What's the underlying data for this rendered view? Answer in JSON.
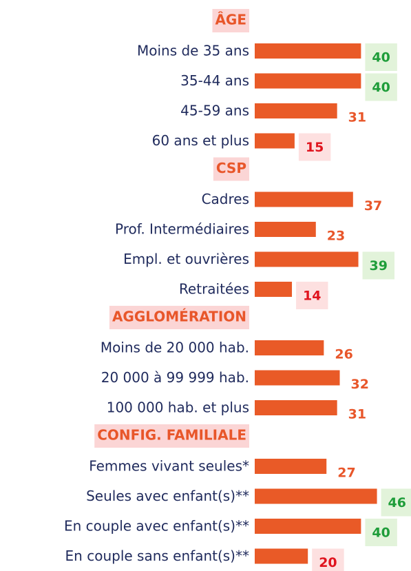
{
  "chart_data": {
    "type": "bar",
    "color": "#e95a27",
    "groups": [
      {
        "title": "ÂGE",
        "categories": [
          "Moins de 35 ans",
          "35-44 ans",
          "45-59 ans",
          "60 ans et plus"
        ],
        "values": [
          40,
          40,
          31,
          15
        ],
        "label_colors": [
          "#1f9d3a",
          "#1f9d3a",
          "#e8562a",
          "#e0141e"
        ],
        "label_backgrounds": [
          "#e2f3da",
          "#e2f3da",
          null,
          "#fde0e0"
        ]
      },
      {
        "title": "CSP",
        "categories": [
          "Cadres",
          "Prof. Intermédiaires",
          "Empl. et ouvrières",
          "Retraitées"
        ],
        "values": [
          37,
          23,
          39,
          14
        ],
        "label_colors": [
          "#e8562a",
          "#e8562a",
          "#1f9d3a",
          "#e0141e"
        ],
        "label_backgrounds": [
          null,
          null,
          "#e2f3da",
          "#fde0e0"
        ]
      },
      {
        "title": "AGGLOMÉRATION",
        "categories": [
          "Moins de 20 000 hab.",
          "20 000 à  99 999 hab.",
          "100 000 hab. et plus"
        ],
        "values": [
          26,
          32,
          31
        ],
        "label_colors": [
          "#e8562a",
          "#e8562a",
          "#e8562a"
        ],
        "label_backgrounds": [
          null,
          null,
          null
        ]
      },
      {
        "title": "CONFIG. FAMILIALE",
        "categories": [
          "Femmes vivant seules*",
          "Seules avec enfant(s)**",
          "En couple avec enfant(s)**",
          "En couple sans enfant(s)**"
        ],
        "values": [
          27,
          46,
          40,
          20
        ],
        "label_colors": [
          "#e8562a",
          "#1f9d3a",
          "#1f9d3a",
          "#e0141e"
        ],
        "label_backgrounds": [
          null,
          "#e2f3da",
          "#e2f3da",
          "#fde0e0"
        ]
      }
    ]
  }
}
